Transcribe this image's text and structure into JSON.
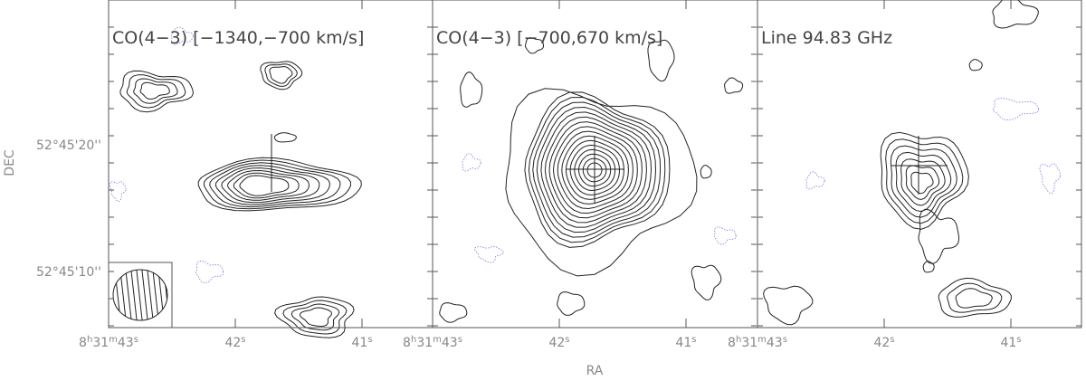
{
  "y_axis": {
    "label": "DEC",
    "ticks": [
      "52°45'20''",
      "52°45'10''"
    ]
  },
  "x_axis": {
    "label": "RA"
  },
  "panels": [
    {
      "title": "CO(4−3) [−1340,−700 km/s]",
      "x_ticks": [
        {
          "parts": [
            "8",
            "h",
            "31",
            "m",
            "43",
            "s"
          ]
        },
        {
          "parts": [
            "42",
            "s"
          ]
        },
        {
          "parts": [
            "41",
            "s"
          ]
        }
      ]
    },
    {
      "title": "CO(4−3) [−700,670 km/s]",
      "x_ticks": [
        {
          "parts": [
            "8",
            "h",
            "31",
            "m",
            "43",
            "s"
          ]
        },
        {
          "parts": [
            "42",
            "s"
          ]
        },
        {
          "parts": [
            "41",
            "s"
          ]
        }
      ]
    },
    {
      "title": "Line 94.83 GHz",
      "x_ticks": [
        {
          "parts": [
            "8",
            "h",
            "31",
            "m",
            "43",
            "s"
          ]
        },
        {
          "parts": [
            "42",
            "s"
          ]
        },
        {
          "parts": [
            "41",
            "s"
          ]
        }
      ]
    }
  ]
}
